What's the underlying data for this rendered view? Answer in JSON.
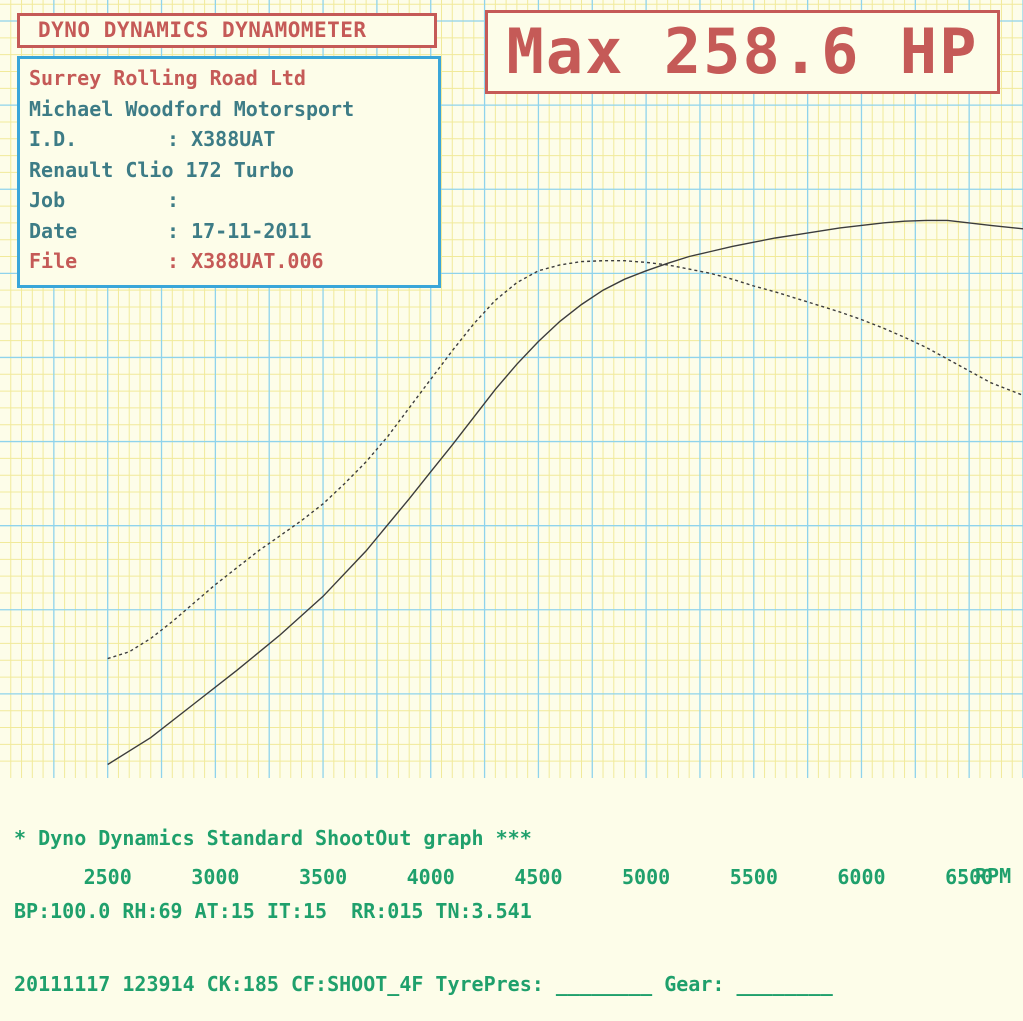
{
  "header": {
    "title": "DYNO DYNAMICS DYNAMOMETER",
    "max_text": "Max 258.6 HP"
  },
  "info": {
    "company": "Surrey Rolling Road Ltd",
    "customer": "Michael Woodford Motorsport",
    "id_label": "I.D.",
    "id_value": ": X388UAT",
    "vehicle": "Renault Clio 172 Turbo",
    "job_label": "Job",
    "job_value": ":",
    "date_label": "Date",
    "date_value": ": 17-11-2011",
    "file_label": "File",
    "file_value": ": X388UAT.006"
  },
  "footer": {
    "line1": "* Dyno Dynamics Standard ShootOut graph ***",
    "line2": "BP:100.0 RH:69 AT:15 IT:15  RR:015 TN:3.541",
    "line3": "20111117 123914 CK:185 CF:SHOOT_4F TyrePres: ________ Gear: ________"
  },
  "colors": {
    "background": "#fdfde9",
    "major_grid": "#8fd3ec",
    "minor_grid": "#f1ea9a",
    "title_red": "#c55a57",
    "info_cyan": "#3aa6d9",
    "footer_green": "#1fa06c",
    "curve": "#3c3c3c"
  },
  "chart_data": {
    "type": "line",
    "x_unit": "RPM",
    "xlim": [
      2000,
      6750
    ],
    "x_ticks": [
      2500,
      3000,
      3500,
      4000,
      4500,
      5000,
      5500,
      6000,
      6500
    ],
    "ylim": [
      0,
      9.25
    ],
    "grid": true,
    "series": [
      {
        "style": "solid",
        "x": [
          2500,
          2700,
          2900,
          3100,
          3300,
          3500,
          3700,
          3900,
          4000,
          4100,
          4200,
          4300,
          4400,
          4500,
          4600,
          4700,
          4800,
          4900,
          5000,
          5100,
          5200,
          5300,
          5400,
          5500,
          5600,
          5700,
          5800,
          5900,
          6000,
          6100,
          6200,
          6300,
          6400,
          6500,
          6600,
          6750
        ],
        "y": [
          0.16,
          0.48,
          0.88,
          1.28,
          1.7,
          2.16,
          2.7,
          3.32,
          3.64,
          3.96,
          4.29,
          4.62,
          4.92,
          5.19,
          5.43,
          5.63,
          5.8,
          5.93,
          6.03,
          6.12,
          6.2,
          6.26,
          6.32,
          6.37,
          6.42,
          6.46,
          6.5,
          6.54,
          6.57,
          6.6,
          6.62,
          6.63,
          6.63,
          6.6,
          6.57,
          6.53
        ]
      },
      {
        "style": "dashed",
        "x": [
          2500,
          2600,
          2700,
          2800,
          2900,
          3000,
          3100,
          3200,
          3300,
          3400,
          3500,
          3600,
          3700,
          3800,
          3900,
          4000,
          4100,
          4200,
          4300,
          4400,
          4500,
          4600,
          4700,
          4800,
          4900,
          5000,
          5100,
          5200,
          5300,
          5400,
          5500,
          5600,
          5700,
          5800,
          5900,
          6000,
          6100,
          6200,
          6300,
          6400,
          6500,
          6600,
          6750
        ],
        "y": [
          1.42,
          1.5,
          1.66,
          1.86,
          2.08,
          2.3,
          2.5,
          2.7,
          2.88,
          3.06,
          3.26,
          3.5,
          3.76,
          4.06,
          4.4,
          4.74,
          5.08,
          5.4,
          5.68,
          5.89,
          6.03,
          6.1,
          6.14,
          6.15,
          6.15,
          6.13,
          6.1,
          6.05,
          6.0,
          5.93,
          5.85,
          5.78,
          5.7,
          5.62,
          5.54,
          5.45,
          5.35,
          5.24,
          5.12,
          4.98,
          4.84,
          4.7,
          4.55
        ]
      }
    ]
  }
}
